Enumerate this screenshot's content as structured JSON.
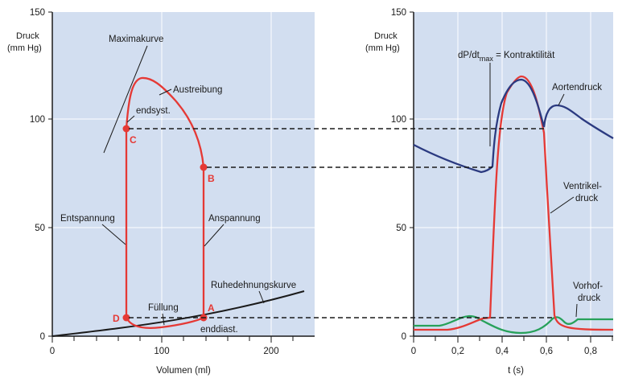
{
  "left_panel": {
    "y_label_line1": "Druck",
    "y_label_line2": "(mm Hg)",
    "x_label": "Volumen (ml)",
    "y_ticks": [
      "0",
      "50",
      "100",
      "150"
    ],
    "x_ticks": [
      "0",
      "100",
      "200"
    ],
    "labels": {
      "maximakurve": "Maximakurve",
      "austreibung": "Austreibung",
      "endsyst": "endsyst.",
      "entspannung": "Entspannung",
      "anspannung": "Anspannung",
      "ruhedehnungskurve": "Ruhedehnungskurve",
      "fuellung": "Füllung",
      "enddiast": "enddiast.",
      "point_a": "A",
      "point_b": "B",
      "point_c": "C",
      "point_d": "D"
    }
  },
  "right_panel": {
    "y_label_line1": "Druck",
    "y_label_line2": "(mm Hg)",
    "x_label": "t (s)",
    "y_ticks": [
      "0",
      "50",
      "100",
      "150"
    ],
    "x_ticks": [
      "0",
      "0,2",
      "0,4",
      "0,6",
      "0,8"
    ],
    "labels": {
      "dpdt": "dP/dt",
      "dpdt_sub": "max",
      "dpdt_rest": " = Kontraktilität",
      "aortendruck": "Aortendruck",
      "ventrikel1": "Ventrikel-",
      "ventrikel2": "druck",
      "vorhof1": "Vorhof-",
      "vorhof2": "druck"
    }
  },
  "colors": {
    "background": "#d2def0",
    "grid": "#ffffff",
    "ventricle_red": "#e53935",
    "aorta_blue": "#2b3a80",
    "atrium_green": "#27a15a",
    "axis_black": "#1a1a1a"
  }
}
